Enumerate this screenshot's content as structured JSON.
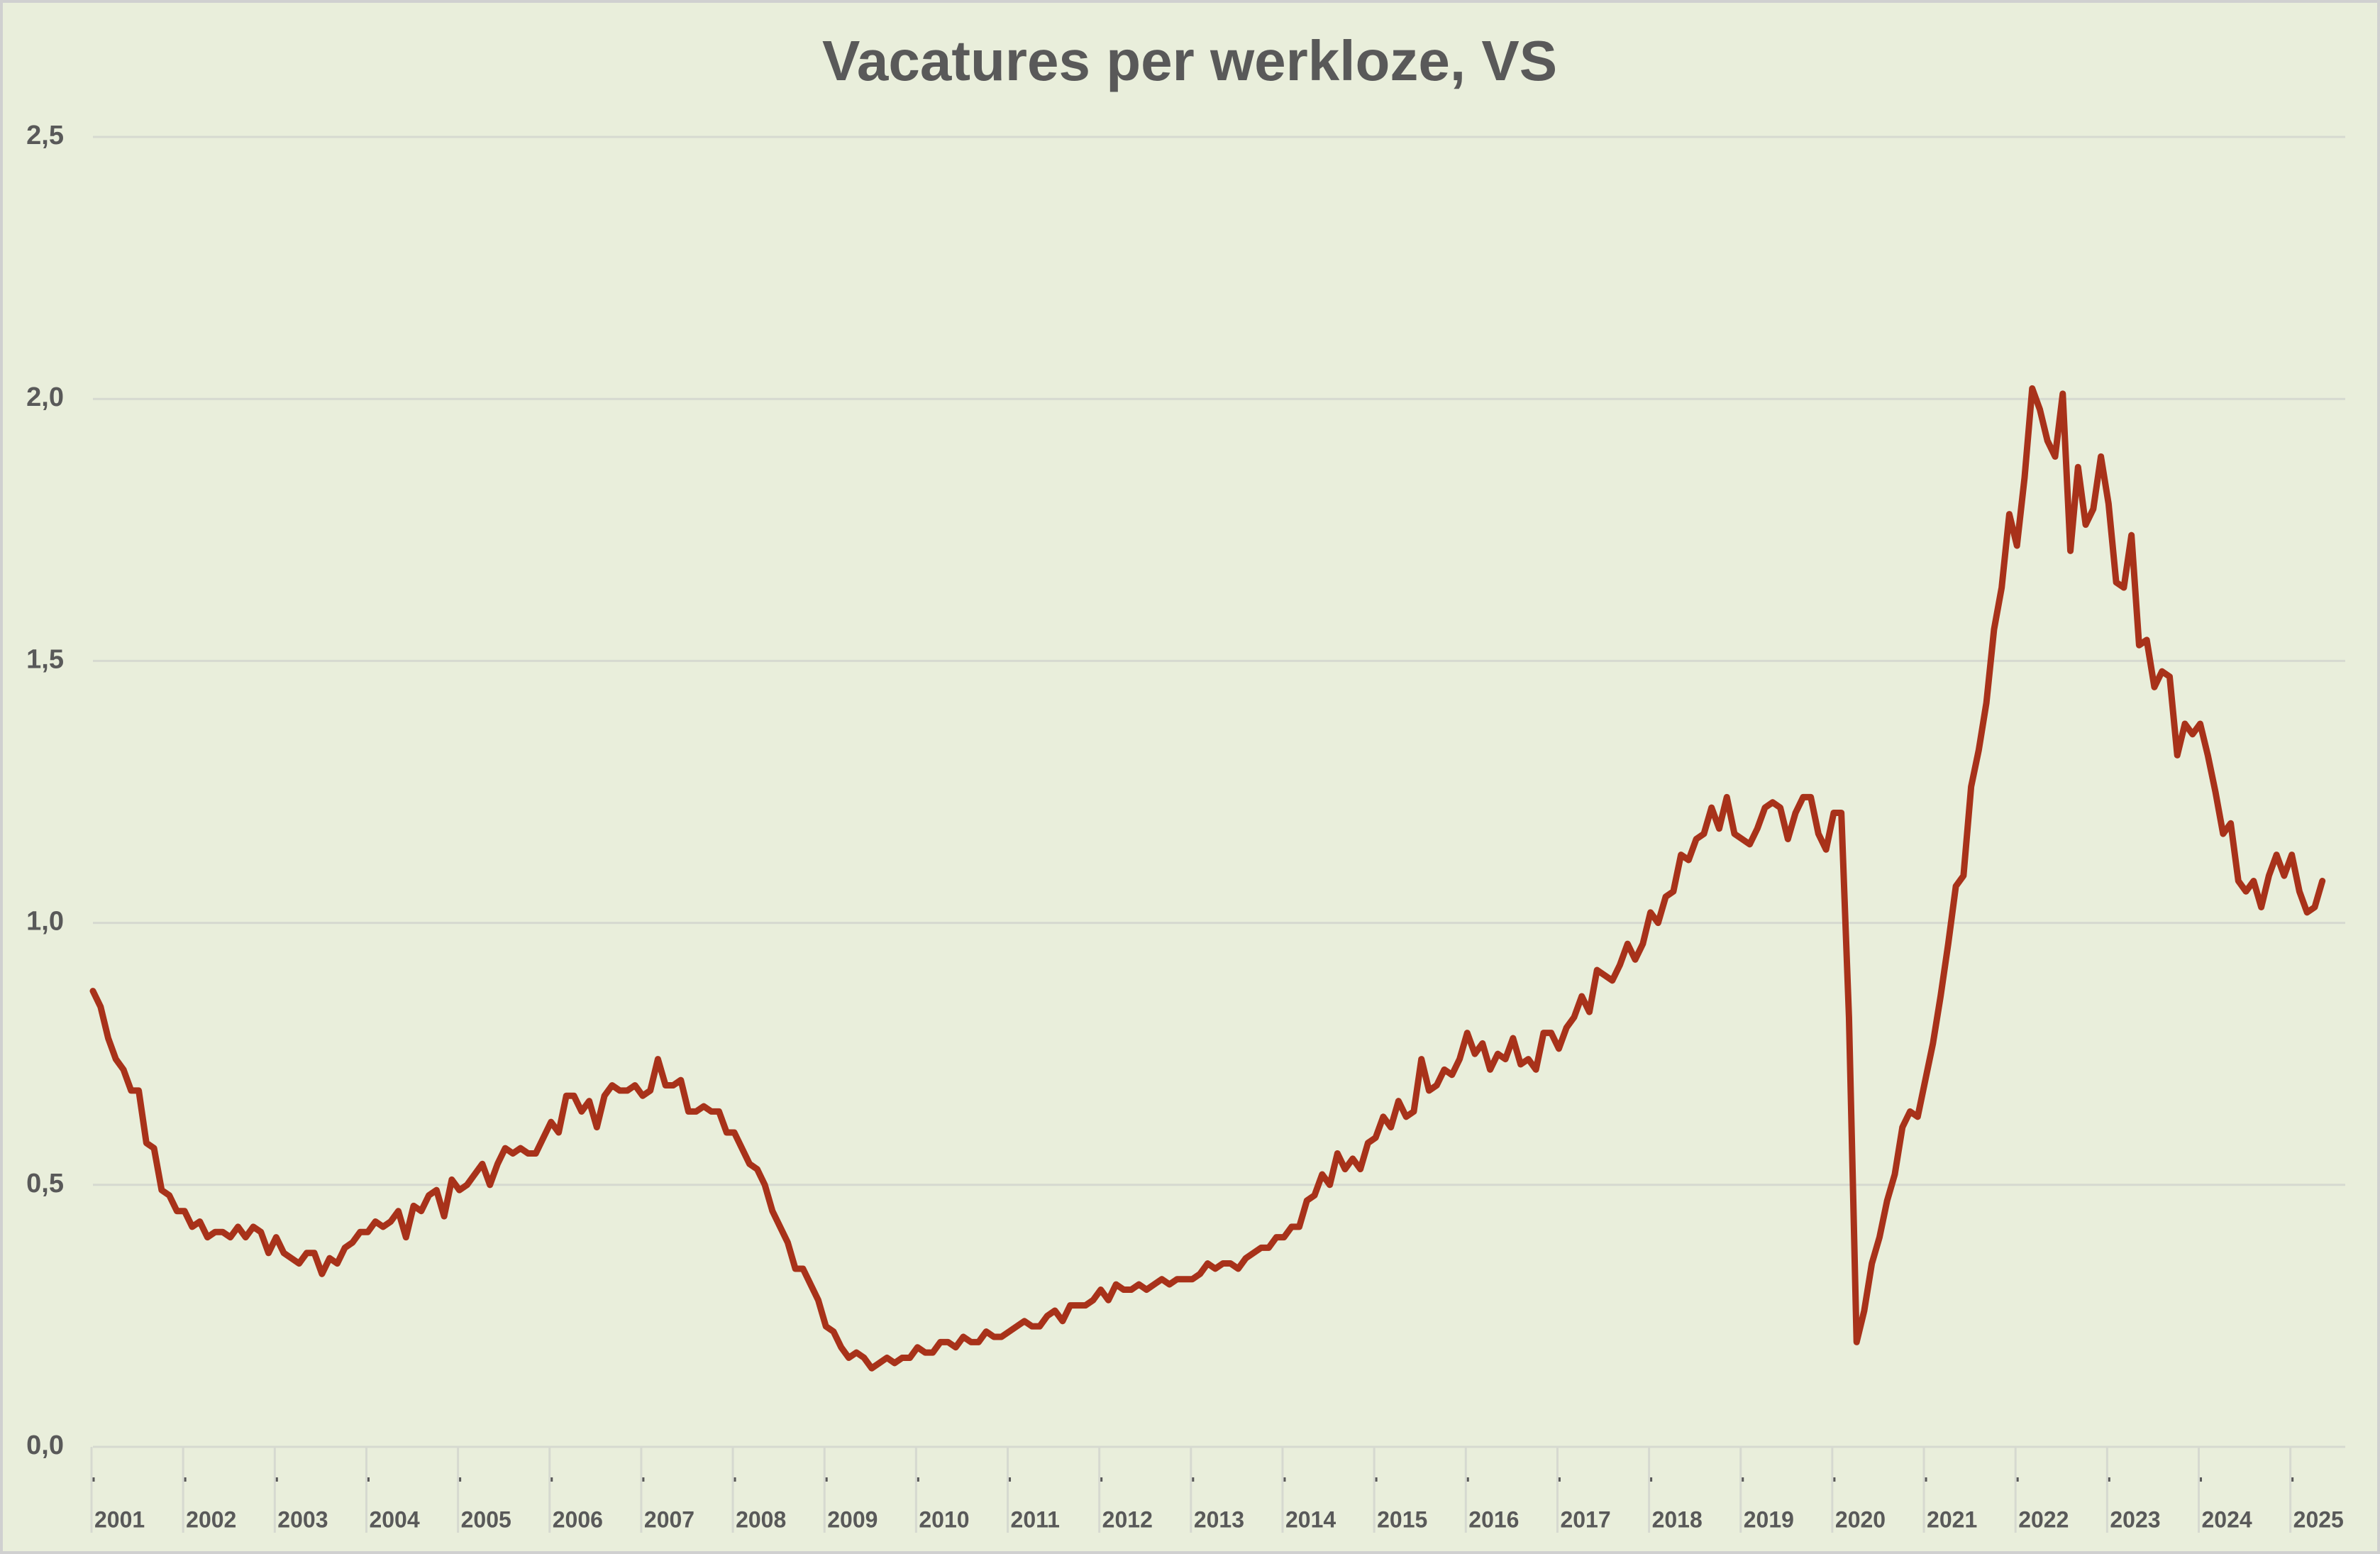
{
  "chart_data": {
    "type": "line",
    "title": "Vacatures per werkloze, VS",
    "categories": [
      "2001",
      null,
      null,
      null,
      null,
      null,
      null,
      null,
      null,
      null,
      null,
      null,
      "2002",
      null,
      null,
      null,
      null,
      null,
      null,
      null,
      null,
      null,
      null,
      null,
      "2003",
      null,
      null,
      null,
      null,
      null,
      null,
      null,
      null,
      null,
      null,
      null,
      "2004",
      null,
      null,
      null,
      null,
      null,
      null,
      null,
      null,
      null,
      null,
      null,
      "2005",
      null,
      null,
      null,
      null,
      null,
      null,
      null,
      null,
      null,
      null,
      null,
      "2006",
      null,
      null,
      null,
      null,
      null,
      null,
      null,
      null,
      null,
      null,
      null,
      "2007",
      null,
      null,
      null,
      null,
      null,
      null,
      null,
      null,
      null,
      null,
      null,
      "2008",
      null,
      null,
      null,
      null,
      null,
      null,
      null,
      null,
      null,
      null,
      null,
      "2009",
      null,
      null,
      null,
      null,
      null,
      null,
      null,
      null,
      null,
      null,
      null,
      "2010",
      null,
      null,
      null,
      null,
      null,
      null,
      null,
      null,
      null,
      null,
      null,
      "2011",
      null,
      null,
      null,
      null,
      null,
      null,
      null,
      null,
      null,
      null,
      null,
      "2012",
      null,
      null,
      null,
      null,
      null,
      null,
      null,
      null,
      null,
      null,
      null,
      "2013",
      null,
      null,
      null,
      null,
      null,
      null,
      null,
      null,
      null,
      null,
      null,
      "2014",
      null,
      null,
      null,
      null,
      null,
      null,
      null,
      null,
      null,
      null,
      null,
      "2015",
      null,
      null,
      null,
      null,
      null,
      null,
      null,
      null,
      null,
      null,
      null,
      "2016",
      null,
      null,
      null,
      null,
      null,
      null,
      null,
      null,
      null,
      null,
      null,
      "2017",
      null,
      null,
      null,
      null,
      null,
      null,
      null,
      null,
      null,
      null,
      null,
      "2018",
      null,
      null,
      null,
      null,
      null,
      null,
      null,
      null,
      null,
      null,
      null,
      "2019",
      null,
      null,
      null,
      null,
      null,
      null,
      null,
      null,
      null,
      null,
      null,
      "2020",
      null,
      null,
      null,
      null,
      null,
      null,
      null,
      null,
      null,
      null,
      null,
      "2021",
      null,
      null,
      null,
      null,
      null,
      null,
      null,
      null,
      null,
      null,
      null,
      "2022",
      null,
      null,
      null,
      null,
      null,
      null,
      null,
      null,
      null,
      null,
      null,
      "2023",
      null,
      null,
      null,
      null,
      null,
      null,
      null,
      null,
      null,
      null,
      null,
      "2024",
      null,
      null,
      null,
      null,
      null,
      null,
      null,
      null,
      null,
      null,
      null,
      "2025",
      null,
      null,
      null,
      null
    ],
    "values": [
      0.87,
      0.84,
      0.78,
      0.74,
      0.72,
      0.68,
      0.68,
      0.58,
      0.57,
      0.49,
      0.48,
      0.45,
      0.45,
      0.42,
      0.43,
      0.4,
      0.41,
      0.41,
      0.4,
      0.42,
      0.4,
      0.42,
      0.41,
      0.37,
      0.4,
      0.37,
      0.36,
      0.35,
      0.37,
      0.37,
      0.33,
      0.36,
      0.35,
      0.38,
      0.39,
      0.41,
      0.41,
      0.43,
      0.42,
      0.43,
      0.45,
      0.4,
      0.46,
      0.45,
      0.48,
      0.49,
      0.44,
      0.51,
      0.49,
      0.5,
      0.52,
      0.54,
      0.5,
      0.54,
      0.57,
      0.56,
      0.57,
      0.56,
      0.56,
      0.59,
      0.62,
      0.6,
      0.67,
      0.67,
      0.64,
      0.66,
      0.61,
      0.67,
      0.69,
      0.68,
      0.68,
      0.69,
      0.67,
      0.68,
      0.74,
      0.69,
      0.69,
      0.7,
      0.64,
      0.64,
      0.65,
      0.64,
      0.64,
      0.6,
      0.6,
      0.57,
      0.54,
      0.53,
      0.5,
      0.45,
      0.42,
      0.39,
      0.34,
      0.34,
      0.31,
      0.28,
      0.23,
      0.22,
      0.19,
      0.17,
      0.18,
      0.17,
      0.15,
      0.16,
      0.17,
      0.16,
      0.17,
      0.17,
      0.19,
      0.18,
      0.18,
      0.2,
      0.2,
      0.19,
      0.21,
      0.2,
      0.2,
      0.22,
      0.21,
      0.21,
      0.22,
      0.23,
      0.24,
      0.23,
      0.23,
      0.25,
      0.26,
      0.24,
      0.27,
      0.27,
      0.27,
      0.28,
      0.3,
      0.28,
      0.31,
      0.3,
      0.3,
      0.31,
      0.3,
      0.31,
      0.32,
      0.31,
      0.32,
      0.32,
      0.32,
      0.33,
      0.35,
      0.34,
      0.35,
      0.35,
      0.34,
      0.36,
      0.37,
      0.38,
      0.38,
      0.4,
      0.4,
      0.42,
      0.42,
      0.47,
      0.48,
      0.52,
      0.5,
      0.56,
      0.53,
      0.55,
      0.53,
      0.58,
      0.59,
      0.63,
      0.61,
      0.66,
      0.63,
      0.64,
      0.74,
      0.68,
      0.69,
      0.72,
      0.71,
      0.74,
      0.79,
      0.75,
      0.77,
      0.72,
      0.75,
      0.74,
      0.78,
      0.73,
      0.74,
      0.72,
      0.79,
      0.79,
      0.76,
      0.8,
      0.82,
      0.86,
      0.83,
      0.91,
      0.9,
      0.89,
      0.92,
      0.96,
      0.93,
      0.96,
      1.02,
      1.0,
      1.05,
      1.06,
      1.13,
      1.12,
      1.16,
      1.17,
      1.22,
      1.18,
      1.24,
      1.17,
      1.16,
      1.15,
      1.18,
      1.22,
      1.23,
      1.22,
      1.16,
      1.21,
      1.24,
      1.24,
      1.17,
      1.14,
      1.21,
      1.21,
      0.82,
      0.2,
      0.26,
      0.35,
      0.4,
      0.47,
      0.52,
      0.61,
      0.64,
      0.63,
      0.7,
      0.77,
      0.86,
      0.96,
      1.07,
      1.09,
      1.26,
      1.33,
      1.42,
      1.56,
      1.64,
      1.78,
      1.72,
      1.85,
      2.02,
      1.98,
      1.92,
      1.89,
      2.01,
      1.71,
      1.87,
      1.76,
      1.79,
      1.89,
      1.8,
      1.65,
      1.64,
      1.74,
      1.53,
      1.54,
      1.45,
      1.48,
      1.47,
      1.32,
      1.38,
      1.36,
      1.38,
      1.32,
      1.25,
      1.17,
      1.19,
      1.08,
      1.06,
      1.08,
      1.03,
      1.09,
      1.13,
      1.09,
      1.13,
      1.06,
      1.02,
      1.03,
      1.08
    ],
    "color": "#a8321a",
    "ylim": [
      0,
      2.5
    ],
    "yticks": [
      {
        "value": 0,
        "label": "0,0"
      },
      {
        "value": 0.5,
        "label": "0,5"
      },
      {
        "value": 1,
        "label": "1,0"
      },
      {
        "value": 1.5,
        "label": "1,5"
      },
      {
        "value": 2,
        "label": "2,0"
      },
      {
        "value": 2.5,
        "label": "2,5"
      }
    ],
    "grid": true
  }
}
